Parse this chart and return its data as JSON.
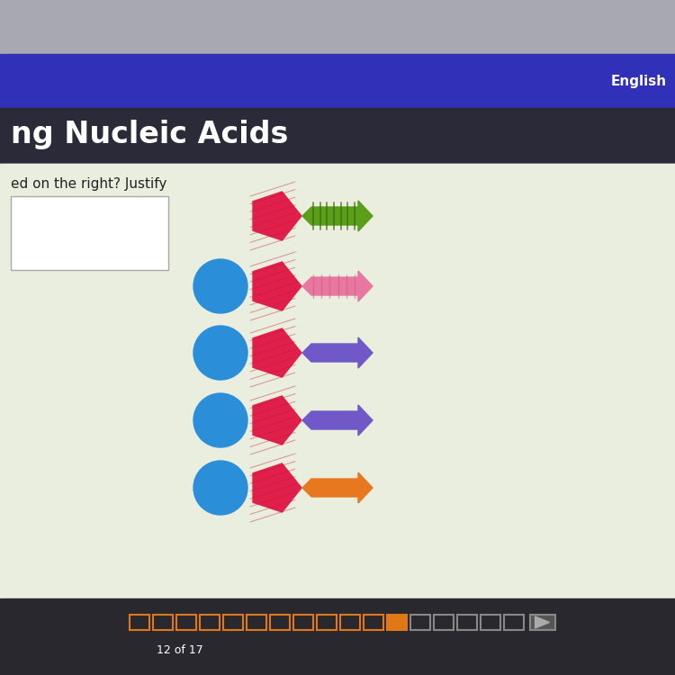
{
  "title": "ng Nucleic Acids",
  "question_text": "ed on the right? Justify",
  "english_text": "English",
  "slide_text": "12 of 17",
  "pentagon_color": "#e0204a",
  "circle_color": "#2a8fd8",
  "base_colors": [
    "#5a9e1a",
    "#e878a0",
    "#7058c8",
    "#7058c8",
    "#e87820"
  ],
  "has_circles": [
    false,
    true,
    true,
    true,
    true
  ],
  "bg_bezel": "#a8a8b0",
  "bg_nav": "#3030b8",
  "bg_header": "#2a2a38",
  "bg_content": "#eaeedf",
  "bg_bottom": "#28282e",
  "content_border": "#cccccc",
  "n_nav_squares": 17,
  "nav_filled_index": 11,
  "nav_filled_color": "#e07818",
  "nav_outline_color_active": "#e07818",
  "nav_outline_color_inactive": "#888888"
}
